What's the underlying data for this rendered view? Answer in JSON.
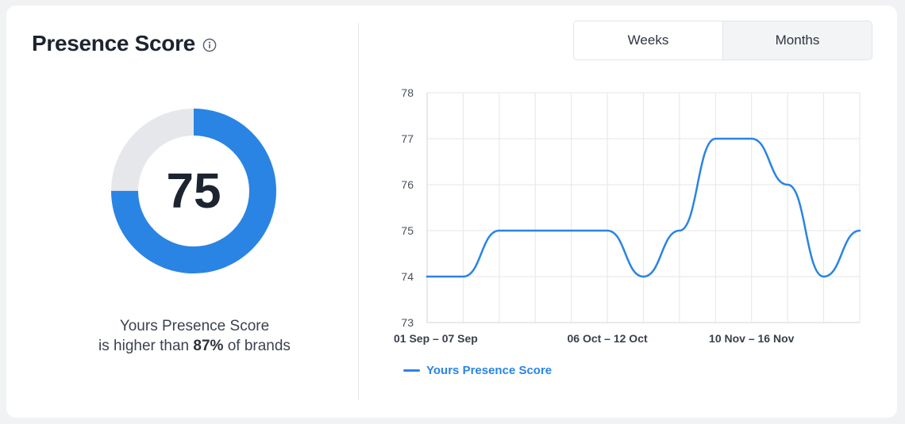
{
  "header": {
    "title": "Presence Score"
  },
  "score": {
    "value": "75",
    "percent": 75,
    "fill_color": "#2a84e4",
    "track_color": "#e5e7ea"
  },
  "summary": {
    "line1": "Yours Presence Score",
    "line2_prefix": "is higher than ",
    "line2_highlight": "87%",
    "line2_suffix": " of brands"
  },
  "toggle": {
    "weeks_label": "Weeks",
    "months_label": "Months",
    "selected": "Months"
  },
  "chart_data": {
    "type": "line",
    "title": "",
    "xlabel": "",
    "ylabel": "",
    "ylim": [
      73,
      78
    ],
    "y_ticks": [
      73,
      74,
      75,
      76,
      77,
      78
    ],
    "x_tick_labels": [
      "01 Sep – 07 Sep",
      "06 Oct – 12 Oct",
      "10 Nov – 16 Nov"
    ],
    "x_tick_positions": [
      0,
      5,
      9
    ],
    "grid": true,
    "legend_placement": "bottom-left",
    "x": [
      0,
      1,
      2,
      3,
      4,
      5,
      6,
      7,
      8,
      9,
      10,
      11,
      12
    ],
    "series": [
      {
        "name": "Yours Presence Score",
        "color": "#2a84e4",
        "values": [
          74,
          74,
          75,
          75,
          75,
          75,
          74,
          75,
          77,
          77,
          76,
          74,
          75
        ]
      }
    ]
  }
}
